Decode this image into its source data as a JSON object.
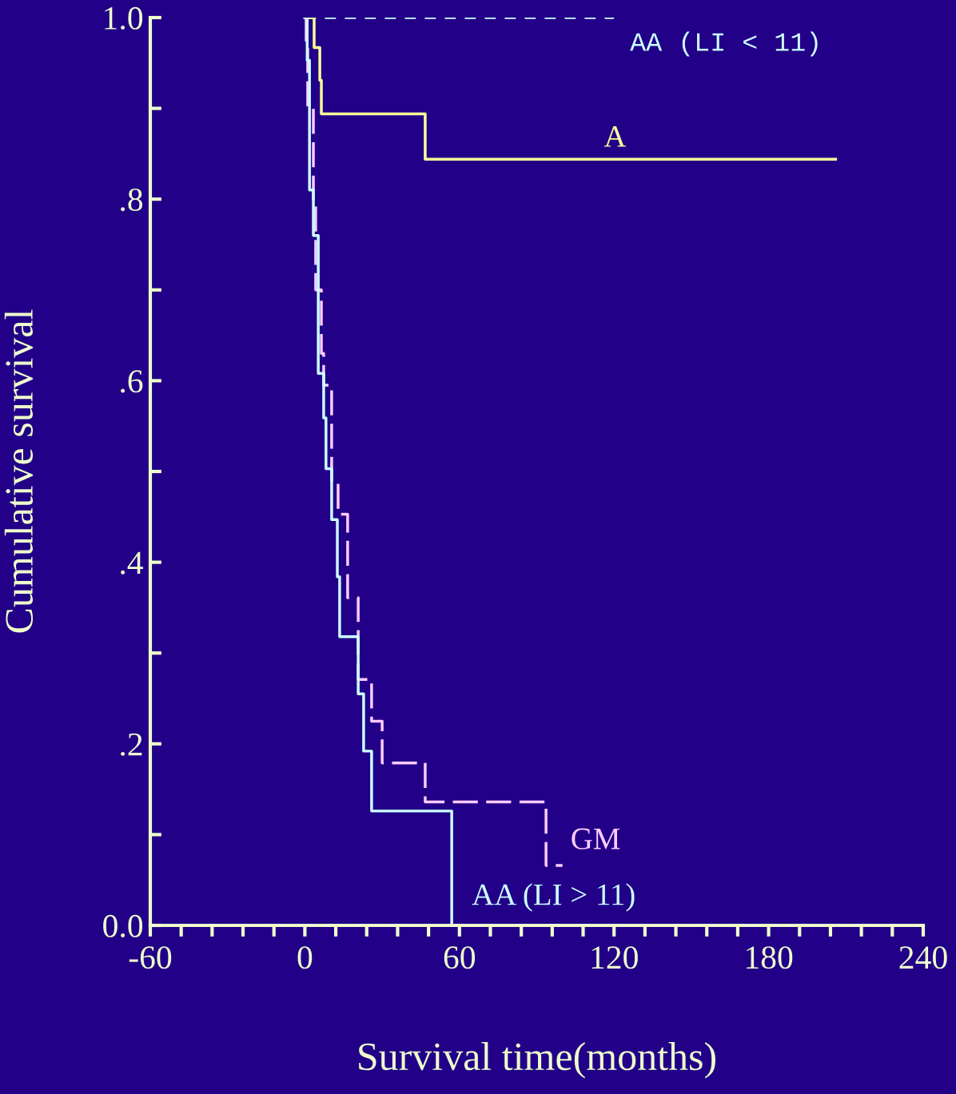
{
  "chart_data": {
    "type": "step",
    "xlabel": "Survival time(months)",
    "ylabel": "Cumulative survival",
    "xlim": [
      -60,
      240
    ],
    "ylim": [
      0,
      1.0
    ],
    "xticks": [
      -60,
      {
        "value": -48,
        "label": null
      },
      {
        "value": -36,
        "label": null
      },
      {
        "value": -24,
        "label": null
      },
      {
        "value": -12,
        "label": null
      },
      0,
      {
        "value": 12,
        "label": null
      },
      {
        "value": 24,
        "label": null
      },
      {
        "value": 36,
        "label": null
      },
      {
        "value": 48,
        "label": null
      },
      60,
      {
        "value": 72,
        "label": null
      },
      {
        "value": 84,
        "label": null
      },
      {
        "value": 96,
        "label": null
      },
      {
        "value": 108,
        "label": null
      },
      120,
      {
        "value": 132,
        "label": null
      },
      {
        "value": 144,
        "label": null
      },
      {
        "value": 156,
        "label": null
      },
      {
        "value": 168,
        "label": null
      },
      180,
      {
        "value": 192,
        "label": null
      },
      {
        "value": 204,
        "label": null
      },
      {
        "value": 216,
        "label": null
      },
      {
        "value": 228,
        "label": null
      },
      240
    ],
    "yticks": [
      {
        "value": 0,
        "label": "0.0"
      },
      {
        "value": 0.1,
        "label": null
      },
      {
        "value": 0.2,
        "label": ".2"
      },
      {
        "value": 0.3,
        "label": null
      },
      {
        "value": 0.4,
        "label": ".4"
      },
      {
        "value": 0.5,
        "label": null
      },
      {
        "value": 0.6,
        "label": ".6"
      },
      {
        "value": 0.7,
        "label": null
      },
      {
        "value": 0.8,
        "label": ".8"
      },
      {
        "value": 0.9,
        "label": null
      },
      {
        "value": 1.0,
        "label": "1.0"
      }
    ],
    "grid": false,
    "legend": false,
    "series": [
      {
        "name": "AA (LI < 11)",
        "color": "#ccffff",
        "line_style": "dashed",
        "x": [
          0,
          120
        ],
        "values": [
          1.0,
          1.0
        ]
      },
      {
        "name": "A",
        "color": "#ffff99",
        "line_style": "solid",
        "x": [
          0,
          3.6,
          5.8,
          6.4,
          46.7,
          206
        ],
        "values": [
          1.0,
          0.967,
          0.931,
          0.894,
          0.844,
          0.844
        ]
      },
      {
        "name": "GM",
        "color": "#ffccff",
        "line_style": "dashed",
        "x": [
          0,
          0.5,
          1.1,
          3.3,
          4.2,
          6.4,
          7.3,
          10.4,
          12.9,
          16.6,
          20.7,
          25.9,
          30,
          46.7,
          93.6,
          100
        ],
        "values": [
          1.0,
          0.967,
          0.902,
          0.8,
          0.7,
          0.63,
          0.595,
          0.49,
          0.453,
          0.361,
          0.271,
          0.225,
          0.179,
          0.136,
          0.066,
          0.066
        ]
      },
      {
        "name": "AA (LI > 11)",
        "color": "#ccffff",
        "line_style": "solid",
        "x": [
          0,
          0.9,
          1.8,
          3.3,
          5.2,
          7.3,
          8.2,
          10.4,
          12.6,
          13.5,
          20.7,
          22.8,
          25.9,
          57
        ],
        "values": [
          1.0,
          0.953,
          0.81,
          0.76,
          0.608,
          0.559,
          0.503,
          0.447,
          0.384,
          0.318,
          0.255,
          0.192,
          0.126,
          0
        ]
      }
    ]
  }
}
